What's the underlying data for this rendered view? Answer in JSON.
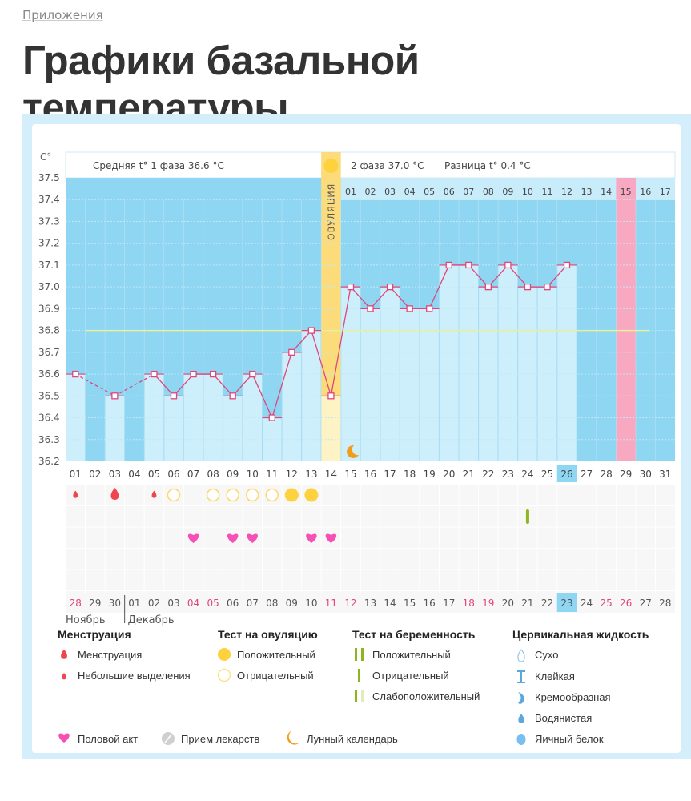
{
  "breadcrumb": "Приложения",
  "page_title": "Графики базальной температуры",
  "chart_data": {
    "type": "line",
    "yunit": "C°",
    "ylim": [
      36.2,
      37.5
    ],
    "yticks": [
      "37.5",
      "37.4",
      "37.3",
      "37.2",
      "37.1",
      "37.0",
      "36.9",
      "36.8",
      "36.7",
      "36.6",
      "36.5",
      "36.4",
      "36.3",
      "36.2"
    ],
    "grid": true,
    "header": {
      "phase1": "Средняя t° 1 фаза 36.6 °C",
      "phase2": "2 фаза 37.0 °C",
      "diff": "Разница t° 0.4 °C"
    },
    "ovulation_label": "ОВУЛЯЦИЯ",
    "ovulation_day": 14,
    "cover_line": 36.8,
    "cycle_days": [
      "01",
      "02",
      "03",
      "04",
      "05",
      "06",
      "07",
      "08",
      "09",
      "10",
      "11",
      "12",
      "13",
      "14",
      "15",
      "16",
      "17",
      "18",
      "19",
      "20",
      "21",
      "22",
      "23",
      "24",
      "25",
      "26",
      "27",
      "28",
      "29",
      "30",
      "31"
    ],
    "current_day": "26",
    "temperatures": [
      36.6,
      null,
      36.5,
      null,
      36.6,
      36.5,
      36.6,
      36.6,
      36.5,
      36.6,
      36.4,
      36.7,
      36.8,
      36.5,
      37.0,
      36.9,
      37.0,
      36.9,
      36.9,
      37.1,
      37.1,
      37.0,
      37.1,
      37.0,
      37.0,
      37.1,
      null,
      null,
      null,
      null,
      null
    ],
    "phase2_days": [
      "01",
      "02",
      "03",
      "04",
      "05",
      "06",
      "07",
      "08",
      "09",
      "10",
      "11",
      "12",
      "13",
      "14",
      "15",
      "16",
      "17"
    ],
    "phase2_highlight": "15",
    "dates": [
      "28",
      "29",
      "30",
      "01",
      "02",
      "03",
      "04",
      "05",
      "06",
      "07",
      "08",
      "09",
      "10",
      "11",
      "12",
      "13",
      "14",
      "15",
      "16",
      "17",
      "18",
      "19",
      "20",
      "21",
      "22",
      "23",
      "24",
      "25",
      "26",
      "27",
      "28"
    ],
    "weekend_dates_index": [
      0,
      6,
      7,
      13,
      14,
      20,
      21,
      27,
      28
    ],
    "today_date_index": 25,
    "months": [
      "Ноябрь",
      "Декабрь"
    ],
    "events": {
      "menstruation": [
        {
          "day": 1,
          "kind": "small"
        },
        {
          "day": 3,
          "kind": "large"
        },
        {
          "day": 5,
          "kind": "small"
        }
      ],
      "ovulation_test_negative": [
        6,
        8,
        9,
        10,
        11
      ],
      "ovulation_test_positive": [
        12,
        13
      ],
      "pregnancy_test_negative": [
        24
      ],
      "intercourse": [
        7,
        9,
        10,
        13,
        14
      ],
      "moon": [
        15
      ]
    },
    "colors": {
      "chart_bg": "#8fd6f2",
      "bar": "#cdeefb",
      "line": "#e0457b",
      "ovulation": "#fcdc7a",
      "highlight_pink": "#f9a8c2",
      "cover_line": "#e8f0a0",
      "weekend": "#e0457b"
    }
  },
  "legend": {
    "menstruation": {
      "title": "Менструация",
      "items": [
        "Менструация",
        "Небольшие выделения"
      ]
    },
    "ovulation_test": {
      "title": "Тест на овуляцию",
      "items": [
        "Положительный",
        "Отрицательный"
      ]
    },
    "pregnancy_test": {
      "title": "Тест на беременность",
      "items": [
        "Положительный",
        "Отрицательный",
        "Слабоположительный"
      ]
    },
    "cervical": {
      "title": "Цервикальная жидкость",
      "items": [
        "Сухо",
        "Клейкая",
        "Кремообразная",
        "Водянистая",
        "Яичный белок"
      ]
    },
    "other": [
      "Половой акт",
      "Прием лекарств",
      "Лунный календарь"
    ]
  }
}
